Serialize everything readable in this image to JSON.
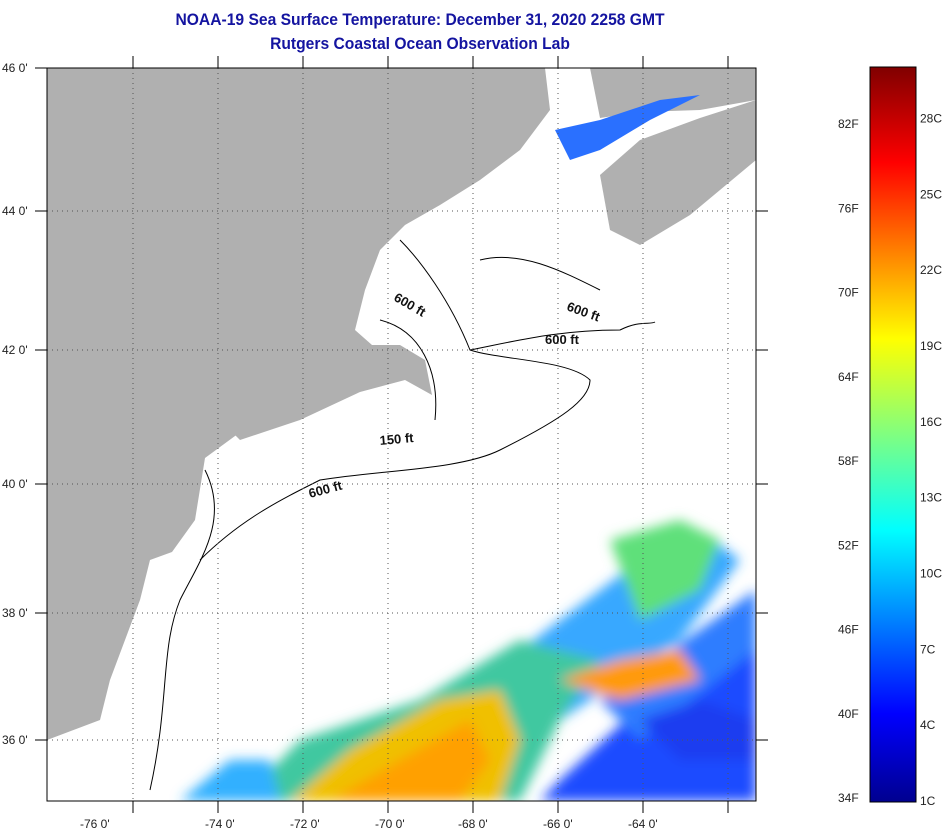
{
  "header": {
    "title": "NOAA-19 Sea Surface Temperature:  December 31, 2020 2258 GMT",
    "subtitle": "Rutgers Coastal Ocean Observation Lab"
  },
  "map": {
    "lat_labels": [
      "46 0'",
      "44 0'",
      "42 0'",
      "40 0'",
      "38 0'",
      "36 0'"
    ],
    "lon_labels": [
      "-76 0'",
      "-74 0'",
      "-72 0'",
      "-70 0'",
      "-68 0'",
      "-66 0'",
      "-64 0'"
    ],
    "contour_labels": [
      "600 ft",
      "600 ft",
      "600 ft",
      "150 ft",
      "600 ft"
    ],
    "land_color": "#b0b0b0"
  },
  "colorbar": {
    "fahrenheit_labels": [
      "82F",
      "76F",
      "70F",
      "64F",
      "58F",
      "52F",
      "46F",
      "40F",
      "34F"
    ],
    "celsius_labels": [
      "28C",
      "25C",
      "22C",
      "19C",
      "16C",
      "13C",
      "10C",
      "7C",
      "4C",
      "1C"
    ],
    "range_celsius": [
      1,
      30
    ]
  }
}
